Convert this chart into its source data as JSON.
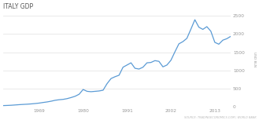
{
  "title": "ITALY GDP",
  "ylabel": "USD BLN",
  "source_text": "SOURCE: TRADINGECONOMICS.COM | WORLD BANK",
  "background_color": "#ffffff",
  "line_color": "#5b9bd5",
  "grid_color": "#e0e0e0",
  "title_color": "#555555",
  "tick_color": "#999999",
  "ylim": [
    0,
    2600
  ],
  "yticks": [
    0,
    500,
    1000,
    1500,
    2000,
    2500
  ],
  "x_years": [
    1960,
    1961,
    1962,
    1963,
    1964,
    1965,
    1966,
    1967,
    1968,
    1969,
    1970,
    1971,
    1972,
    1973,
    1974,
    1975,
    1976,
    1977,
    1978,
    1979,
    1980,
    1981,
    1982,
    1983,
    1984,
    1985,
    1986,
    1987,
    1988,
    1989,
    1990,
    1991,
    1992,
    1993,
    1994,
    1995,
    1996,
    1997,
    1998,
    1999,
    2000,
    2001,
    2002,
    2003,
    2004,
    2005,
    2006,
    2007,
    2008,
    2009,
    2010,
    2011,
    2012,
    2013,
    2014,
    2015,
    2016,
    2017
  ],
  "gdp_values": [
    40,
    44,
    49,
    57,
    65,
    72,
    78,
    86,
    96,
    108,
    125,
    140,
    160,
    185,
    200,
    210,
    230,
    260,
    295,
    350,
    480,
    430,
    420,
    430,
    440,
    460,
    640,
    780,
    830,
    870,
    1090,
    1150,
    1210,
    1060,
    1040,
    1090,
    1210,
    1220,
    1270,
    1250,
    1100,
    1150,
    1280,
    1510,
    1730,
    1790,
    1880,
    2130,
    2390,
    2185,
    2125,
    2200,
    2075,
    1770,
    1720,
    1830,
    1870,
    1935
  ],
  "xtick_years": [
    1969,
    1980,
    1991,
    2002,
    2013
  ],
  "xtick_labels": [
    "1969",
    "1980",
    "1991",
    "2002",
    "2013"
  ]
}
